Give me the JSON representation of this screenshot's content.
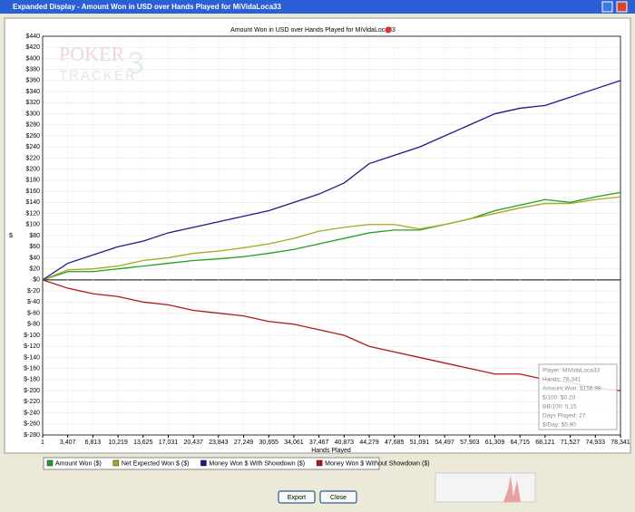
{
  "window": {
    "title": "Expanded Display - Amount Won in USD over Hands Played for MiVidaLoca33",
    "buttons": [
      "Export",
      "Close"
    ]
  },
  "watermark": {
    "line1": "POKER",
    "line2": "TRACKER",
    "digit": "3"
  },
  "info": [
    "Player: MiVidaLoca33",
    "Hands: 78,341",
    "Amount Won: $158.98",
    "$/100: $0.20",
    "BB/100: 5.15",
    "Days Played: 27",
    "$/Day: $5.90"
  ],
  "chart_data": {
    "type": "line",
    "title": "Amount Won in USD over Hands Played for MiVidaLoca33",
    "y_label": "$",
    "x_label": "Hands Played",
    "grid": true,
    "xlim": [
      1,
      78341
    ],
    "xticks": [
      1,
      {
        "value": 3407,
        "label": "3,407"
      },
      {
        "value": 6813,
        "label": "6,813"
      },
      {
        "value": 10219,
        "label": "10,219"
      },
      {
        "value": 13625,
        "label": "13,625"
      },
      {
        "value": 17031,
        "label": "17,031"
      },
      {
        "value": 20437,
        "label": "20,437"
      },
      {
        "value": 23843,
        "label": "23,843"
      },
      {
        "value": 27249,
        "label": "27,249"
      },
      {
        "value": 30655,
        "label": "30,655"
      },
      {
        "value": 34061,
        "label": "34,061"
      },
      {
        "value": 37467,
        "label": "37,467"
      },
      {
        "value": 40873,
        "label": "40,873"
      },
      {
        "value": 44279,
        "label": "44,279"
      },
      {
        "value": 47685,
        "label": "47,685"
      },
      {
        "value": 51091,
        "label": "51,091"
      },
      {
        "value": 54497,
        "label": "54,497"
      },
      {
        "value": 57903,
        "label": "57,903"
      },
      {
        "value": 61309,
        "label": "61,309"
      },
      {
        "value": 64715,
        "label": "64,715"
      },
      {
        "value": 68121,
        "label": "68,121"
      },
      {
        "value": 71527,
        "label": "71,527"
      },
      {
        "value": 74933,
        "label": "74,933"
      },
      {
        "value": 78341,
        "label": "78,341"
      }
    ],
    "ylim": [
      -280,
      440
    ],
    "yticks": [
      {
        "value": 440,
        "label": "$440"
      },
      {
        "value": 420,
        "label": "$420"
      },
      {
        "value": 400,
        "label": "$400"
      },
      {
        "value": 380,
        "label": "$380"
      },
      {
        "value": 360,
        "label": "$360"
      },
      {
        "value": 340,
        "label": "$340"
      },
      {
        "value": 320,
        "label": "$320"
      },
      {
        "value": 300,
        "label": "$300"
      },
      {
        "value": 280,
        "label": "$280"
      },
      {
        "value": 260,
        "label": "$260"
      },
      {
        "value": 240,
        "label": "$240"
      },
      {
        "value": 220,
        "label": "$220"
      },
      {
        "value": 200,
        "label": "$200"
      },
      {
        "value": 180,
        "label": "$180"
      },
      {
        "value": 160,
        "label": "$160"
      },
      {
        "value": 140,
        "label": "$140"
      },
      {
        "value": 120,
        "label": "$120"
      },
      {
        "value": 100,
        "label": "$100"
      },
      {
        "value": 80,
        "label": "$80"
      },
      {
        "value": 60,
        "label": "$60"
      },
      {
        "value": 40,
        "label": "$40"
      },
      {
        "value": 20,
        "label": "$20"
      },
      {
        "value": 0,
        "label": "$0"
      },
      {
        "value": -20,
        "label": "$-20"
      },
      {
        "value": -40,
        "label": "$-40"
      },
      {
        "value": -60,
        "label": "$-60"
      },
      {
        "value": -80,
        "label": "$-80"
      },
      {
        "value": -100,
        "label": "$-100"
      },
      {
        "value": -120,
        "label": "$-120"
      },
      {
        "value": -140,
        "label": "$-140"
      },
      {
        "value": -160,
        "label": "$-160"
      },
      {
        "value": -180,
        "label": "$-180"
      },
      {
        "value": -200,
        "label": "$-200"
      },
      {
        "value": -220,
        "label": "$-220"
      },
      {
        "value": -240,
        "label": "$-240"
      },
      {
        "value": -260,
        "label": "$-260"
      },
      {
        "value": -280,
        "label": "$-280"
      }
    ],
    "x": [
      1,
      3407,
      6813,
      10219,
      13625,
      17031,
      20437,
      23843,
      27249,
      30655,
      34061,
      37467,
      40873,
      44279,
      47685,
      51091,
      54497,
      57903,
      61309,
      64715,
      68121,
      71527,
      74933,
      78341
    ],
    "series": [
      {
        "name": "Amount Won ($)",
        "color": "#22a022",
        "values": [
          0,
          15,
          15,
          20,
          25,
          30,
          35,
          38,
          42,
          48,
          55,
          65,
          75,
          85,
          90,
          90,
          100,
          110,
          125,
          135,
          145,
          140,
          150,
          158
        ]
      },
      {
        "name": "Net Expected Won $ ($)",
        "color": "#a8a820",
        "values": [
          0,
          18,
          20,
          25,
          35,
          40,
          48,
          52,
          58,
          65,
          75,
          88,
          95,
          100,
          100,
          92,
          100,
          110,
          120,
          130,
          138,
          138,
          145,
          150
        ]
      },
      {
        "name": "Money Won $ With Showdown ($)",
        "color": "#1a1a8c",
        "values": [
          0,
          30,
          45,
          60,
          70,
          85,
          95,
          105,
          115,
          125,
          140,
          155,
          175,
          210,
          225,
          240,
          260,
          280,
          300,
          310,
          315,
          330,
          345,
          360
        ]
      },
      {
        "name": "Money Won $ Without Showdown ($)",
        "color": "#b01818",
        "values": [
          0,
          -15,
          -25,
          -30,
          -40,
          -45,
          -55,
          -60,
          -65,
          -75,
          -80,
          -90,
          -100,
          -120,
          -130,
          -140,
          -150,
          -160,
          -170,
          -170,
          -180,
          -185,
          -195,
          -200
        ]
      }
    ]
  }
}
